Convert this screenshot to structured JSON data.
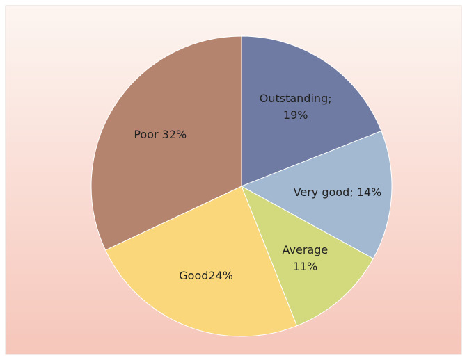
{
  "chart_data": {
    "type": "pie",
    "values": [
      19,
      14,
      11,
      24,
      32
    ],
    "value_labels": [
      "Outstanding;\n19%",
      "Very good; 14%",
      "Average\n11%",
      "Good24%",
      "Poor 32%"
    ],
    "colors": [
      "#6f7ba3",
      "#a2b9d1",
      "#d3da7d",
      "#fbd77b",
      "#b5846f"
    ]
  }
}
